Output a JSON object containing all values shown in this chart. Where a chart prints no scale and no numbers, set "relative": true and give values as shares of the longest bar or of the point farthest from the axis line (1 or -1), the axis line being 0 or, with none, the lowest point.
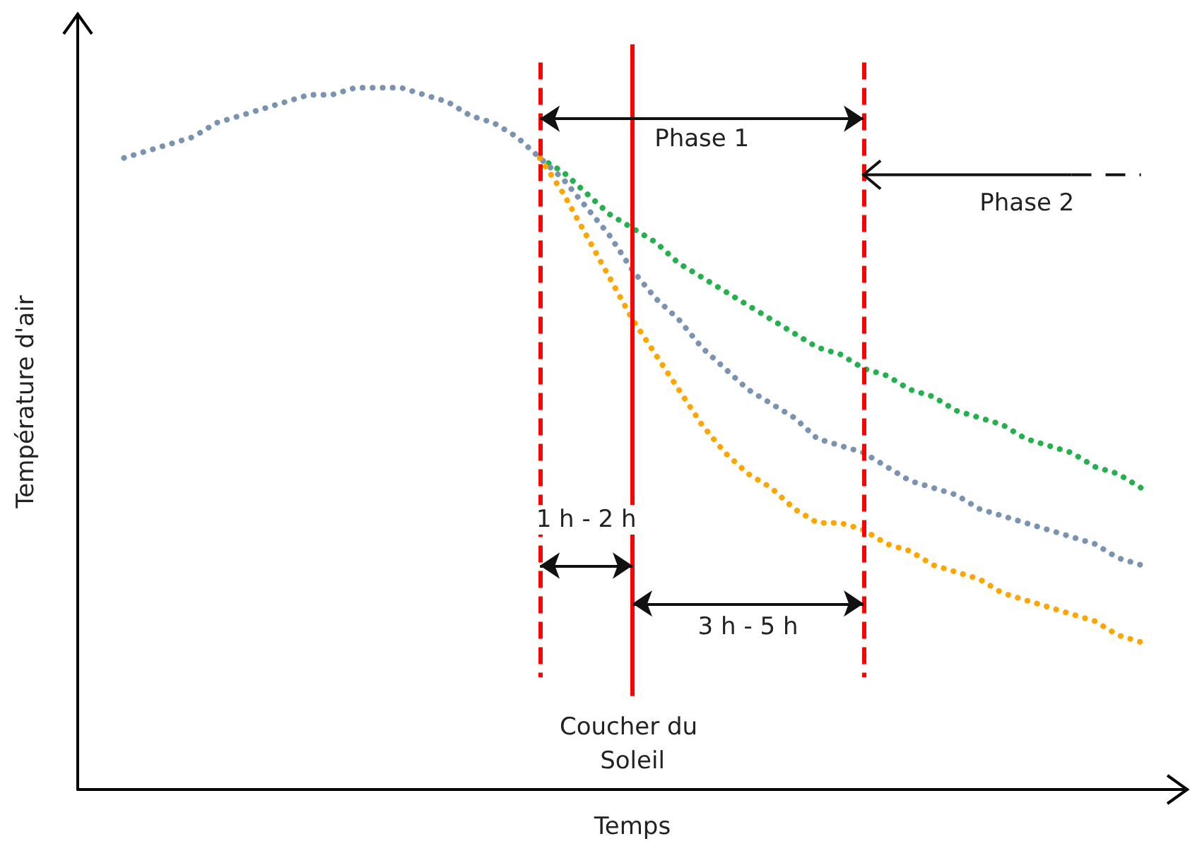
{
  "chart_data": {
    "type": "line",
    "relative": true,
    "xlabel": "Temps",
    "ylabel": "Température d'air",
    "line_style": "dotted",
    "categories": [
      null,
      null,
      null,
      null,
      null,
      null,
      null,
      null,
      null,
      null,
      null,
      null,
      null,
      null,
      null,
      null,
      null,
      null,
      null,
      null,
      null,
      null,
      null,
      null,
      null,
      null,
      null,
      null,
      null,
      null,
      null,
      null,
      null,
      null,
      null,
      null,
      null,
      null,
      null,
      null,
      null,
      null,
      null,
      null,
      null
    ],
    "series": [
      {
        "color": "#22b14c",
        "values": [
          null,
          null,
          null,
          null,
          null,
          null,
          null,
          null,
          null,
          null,
          null,
          null,
          null,
          null,
          null,
          null,
          null,
          null,
          0.9,
          0.88,
          0.85,
          0.82,
          0.8,
          0.78,
          0.75,
          0.73,
          0.71,
          0.69,
          0.67,
          0.65,
          0.63,
          0.62,
          0.6,
          0.59,
          0.57,
          0.56,
          0.54,
          0.53,
          0.52,
          0.5,
          0.49,
          0.48,
          0.46,
          0.45,
          0.43
        ]
      },
      {
        "color": "#7a93b0",
        "values": [
          0.9,
          0.91,
          0.92,
          0.93,
          0.95,
          0.96,
          0.97,
          0.98,
          0.99,
          0.99,
          1.0,
          1.0,
          1.0,
          0.99,
          0.98,
          0.96,
          0.95,
          0.93,
          0.9,
          0.87,
          0.83,
          0.79,
          0.74,
          0.7,
          0.67,
          0.63,
          0.6,
          0.57,
          0.55,
          0.53,
          0.5,
          0.49,
          0.48,
          0.46,
          0.44,
          0.43,
          0.42,
          0.4,
          0.39,
          0.38,
          0.37,
          0.36,
          0.35,
          0.33,
          0.32
        ]
      },
      {
        "color": "#ffa500",
        "values": [
          null,
          null,
          null,
          null,
          null,
          null,
          null,
          null,
          null,
          null,
          null,
          null,
          null,
          null,
          null,
          null,
          null,
          null,
          0.9,
          0.85,
          0.79,
          0.73,
          0.67,
          0.62,
          0.57,
          0.52,
          0.48,
          0.45,
          0.43,
          0.4,
          0.38,
          0.38,
          0.37,
          0.35,
          0.34,
          0.32,
          0.31,
          0.3,
          0.28,
          0.27,
          0.26,
          0.25,
          0.24,
          0.22,
          0.21
        ]
      }
    ],
    "annotations": [
      "Phase 1",
      "Phase 2",
      "1 h - 2 h",
      "3 h - 5 h",
      "Coucher du Soleil"
    ]
  }
}
